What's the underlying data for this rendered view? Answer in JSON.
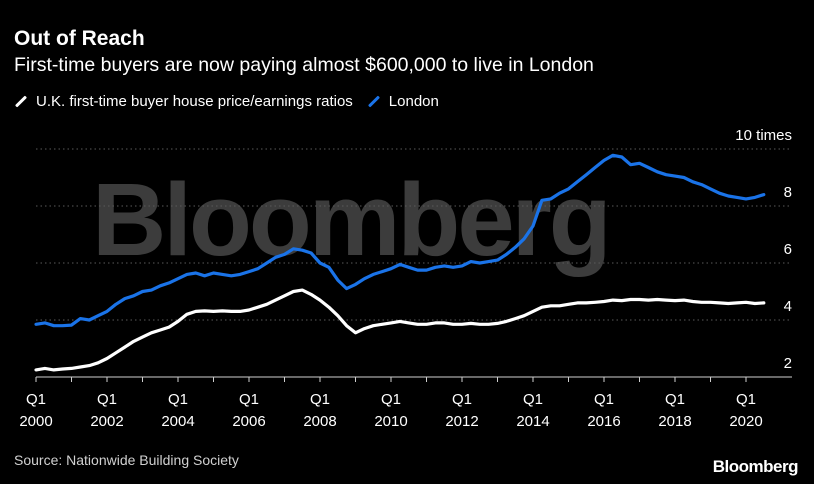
{
  "header": {
    "title": "Out of Reach",
    "subtitle": "First-time buyers are now paying almost $600,000 to live in London"
  },
  "legend": [
    {
      "label": "U.K. first-time buyer house price/earnings ratios",
      "color": "#ffffff"
    },
    {
      "label": "London",
      "color": "#1a73e8"
    }
  ],
  "watermark": "Bloomberg",
  "footer": {
    "source": "Source: Nationwide Building Society",
    "brand": "Bloomberg"
  },
  "chart_data": {
    "type": "line",
    "ylim": [
      1.5,
      10.5
    ],
    "yticks": [
      {
        "value": 10,
        "label": "10 times"
      },
      {
        "value": 8,
        "label": "8"
      },
      {
        "value": 6,
        "label": "6"
      },
      {
        "value": 4,
        "label": "4"
      },
      {
        "value": 2,
        "label": "2"
      }
    ],
    "xlim": [
      2000.0,
      2021.0
    ],
    "xticks": [
      {
        "value": 2000,
        "line1": "Q1",
        "line2": "2000"
      },
      {
        "value": 2002,
        "line1": "Q1",
        "line2": "2002"
      },
      {
        "value": 2004,
        "line1": "Q1",
        "line2": "2004"
      },
      {
        "value": 2006,
        "line1": "Q1",
        "line2": "2006"
      },
      {
        "value": 2008,
        "line1": "Q1",
        "line2": "2008"
      },
      {
        "value": 2010,
        "line1": "Q1",
        "line2": "2010"
      },
      {
        "value": 2012,
        "line1": "Q1",
        "line2": "2012"
      },
      {
        "value": 2014,
        "line1": "Q1",
        "line2": "2014"
      },
      {
        "value": 2016,
        "line1": "Q1",
        "line2": "2016"
      },
      {
        "value": 2018,
        "line1": "Q1",
        "line2": "2018"
      },
      {
        "value": 2020,
        "line1": "Q1",
        "line2": "2020"
      }
    ],
    "series": [
      {
        "name": "U.K. first-time buyer house price/earnings ratios",
        "color": "#ffffff",
        "points": [
          [
            2000.0,
            2.25
          ],
          [
            2000.25,
            2.3
          ],
          [
            2000.5,
            2.25
          ],
          [
            2000.75,
            2.28
          ],
          [
            2001.0,
            2.3
          ],
          [
            2001.25,
            2.35
          ],
          [
            2001.5,
            2.4
          ],
          [
            2001.75,
            2.5
          ],
          [
            2002.0,
            2.65
          ],
          [
            2002.25,
            2.85
          ],
          [
            2002.5,
            3.05
          ],
          [
            2002.75,
            3.25
          ],
          [
            2003.0,
            3.4
          ],
          [
            2003.25,
            3.55
          ],
          [
            2003.5,
            3.65
          ],
          [
            2003.75,
            3.75
          ],
          [
            2004.0,
            3.95
          ],
          [
            2004.25,
            4.2
          ],
          [
            2004.5,
            4.3
          ],
          [
            2004.75,
            4.32
          ],
          [
            2005.0,
            4.3
          ],
          [
            2005.25,
            4.32
          ],
          [
            2005.5,
            4.3
          ],
          [
            2005.75,
            4.3
          ],
          [
            2006.0,
            4.35
          ],
          [
            2006.25,
            4.45
          ],
          [
            2006.5,
            4.55
          ],
          [
            2006.75,
            4.7
          ],
          [
            2007.0,
            4.85
          ],
          [
            2007.25,
            5.0
          ],
          [
            2007.5,
            5.05
          ],
          [
            2007.75,
            4.9
          ],
          [
            2008.0,
            4.7
          ],
          [
            2008.25,
            4.45
          ],
          [
            2008.5,
            4.15
          ],
          [
            2008.75,
            3.8
          ],
          [
            2009.0,
            3.55
          ],
          [
            2009.25,
            3.7
          ],
          [
            2009.5,
            3.8
          ],
          [
            2009.75,
            3.85
          ],
          [
            2010.0,
            3.9
          ],
          [
            2010.25,
            3.95
          ],
          [
            2010.5,
            3.9
          ],
          [
            2010.75,
            3.85
          ],
          [
            2011.0,
            3.85
          ],
          [
            2011.25,
            3.9
          ],
          [
            2011.5,
            3.9
          ],
          [
            2011.75,
            3.85
          ],
          [
            2012.0,
            3.85
          ],
          [
            2012.25,
            3.88
          ],
          [
            2012.5,
            3.85
          ],
          [
            2012.75,
            3.85
          ],
          [
            2013.0,
            3.88
          ],
          [
            2013.25,
            3.95
          ],
          [
            2013.5,
            4.05
          ],
          [
            2013.75,
            4.15
          ],
          [
            2014.0,
            4.3
          ],
          [
            2014.25,
            4.45
          ],
          [
            2014.5,
            4.5
          ],
          [
            2014.75,
            4.5
          ],
          [
            2015.0,
            4.55
          ],
          [
            2015.25,
            4.6
          ],
          [
            2015.5,
            4.6
          ],
          [
            2015.75,
            4.62
          ],
          [
            2016.0,
            4.65
          ],
          [
            2016.25,
            4.7
          ],
          [
            2016.5,
            4.68
          ],
          [
            2016.75,
            4.72
          ],
          [
            2017.0,
            4.72
          ],
          [
            2017.25,
            4.7
          ],
          [
            2017.5,
            4.72
          ],
          [
            2017.75,
            4.7
          ],
          [
            2018.0,
            4.68
          ],
          [
            2018.25,
            4.7
          ],
          [
            2018.5,
            4.65
          ],
          [
            2018.75,
            4.62
          ],
          [
            2019.0,
            4.62
          ],
          [
            2019.25,
            4.6
          ],
          [
            2019.5,
            4.58
          ],
          [
            2019.75,
            4.6
          ],
          [
            2020.0,
            4.62
          ],
          [
            2020.25,
            4.58
          ],
          [
            2020.5,
            4.6
          ]
        ]
      },
      {
        "name": "London",
        "color": "#1a73e8",
        "points": [
          [
            2000.0,
            3.85
          ],
          [
            2000.25,
            3.9
          ],
          [
            2000.5,
            3.8
          ],
          [
            2000.75,
            3.8
          ],
          [
            2001.0,
            3.82
          ],
          [
            2001.25,
            4.05
          ],
          [
            2001.5,
            4.0
          ],
          [
            2001.75,
            4.15
          ],
          [
            2002.0,
            4.3
          ],
          [
            2002.25,
            4.55
          ],
          [
            2002.5,
            4.75
          ],
          [
            2002.75,
            4.85
          ],
          [
            2003.0,
            5.0
          ],
          [
            2003.25,
            5.05
          ],
          [
            2003.5,
            5.2
          ],
          [
            2003.75,
            5.3
          ],
          [
            2004.0,
            5.45
          ],
          [
            2004.25,
            5.6
          ],
          [
            2004.5,
            5.65
          ],
          [
            2004.75,
            5.55
          ],
          [
            2005.0,
            5.65
          ],
          [
            2005.25,
            5.6
          ],
          [
            2005.5,
            5.55
          ],
          [
            2005.75,
            5.6
          ],
          [
            2006.0,
            5.7
          ],
          [
            2006.25,
            5.8
          ],
          [
            2006.5,
            6.0
          ],
          [
            2006.75,
            6.2
          ],
          [
            2007.0,
            6.3
          ],
          [
            2007.25,
            6.5
          ],
          [
            2007.5,
            6.45
          ],
          [
            2007.75,
            6.35
          ],
          [
            2008.0,
            6.0
          ],
          [
            2008.25,
            5.85
          ],
          [
            2008.5,
            5.4
          ],
          [
            2008.75,
            5.1
          ],
          [
            2009.0,
            5.25
          ],
          [
            2009.25,
            5.45
          ],
          [
            2009.5,
            5.6
          ],
          [
            2009.75,
            5.7
          ],
          [
            2010.0,
            5.8
          ],
          [
            2010.25,
            5.95
          ],
          [
            2010.5,
            5.85
          ],
          [
            2010.75,
            5.75
          ],
          [
            2011.0,
            5.75
          ],
          [
            2011.25,
            5.85
          ],
          [
            2011.5,
            5.9
          ],
          [
            2011.75,
            5.85
          ],
          [
            2012.0,
            5.9
          ],
          [
            2012.25,
            6.05
          ],
          [
            2012.5,
            6.0
          ],
          [
            2012.75,
            6.05
          ],
          [
            2013.0,
            6.1
          ],
          [
            2013.25,
            6.3
          ],
          [
            2013.5,
            6.55
          ],
          [
            2013.75,
            6.85
          ],
          [
            2014.0,
            7.3
          ],
          [
            2014.25,
            8.2
          ],
          [
            2014.5,
            8.25
          ],
          [
            2014.75,
            8.45
          ],
          [
            2015.0,
            8.6
          ],
          [
            2015.25,
            8.85
          ],
          [
            2015.5,
            9.1
          ],
          [
            2015.75,
            9.35
          ],
          [
            2016.0,
            9.6
          ],
          [
            2016.25,
            9.78
          ],
          [
            2016.5,
            9.72
          ],
          [
            2016.75,
            9.45
          ],
          [
            2017.0,
            9.5
          ],
          [
            2017.25,
            9.35
          ],
          [
            2017.5,
            9.2
          ],
          [
            2017.75,
            9.1
          ],
          [
            2018.0,
            9.05
          ],
          [
            2018.25,
            9.0
          ],
          [
            2018.5,
            8.85
          ],
          [
            2018.75,
            8.75
          ],
          [
            2019.0,
            8.6
          ],
          [
            2019.25,
            8.45
          ],
          [
            2019.5,
            8.35
          ],
          [
            2019.75,
            8.3
          ],
          [
            2020.0,
            8.25
          ],
          [
            2020.25,
            8.3
          ],
          [
            2020.5,
            8.4
          ]
        ]
      }
    ]
  }
}
